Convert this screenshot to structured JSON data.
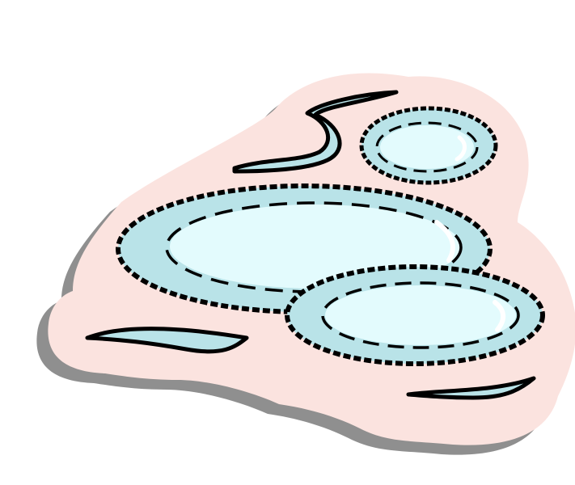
{
  "illustration": {
    "subject": "puddles-sticker-clipart",
    "colors": {
      "background": "#ffffff",
      "shadow": "#8f8f8f",
      "sticker_border": "#fbe3df",
      "water_light": "#e3fbfd",
      "water_mid": "#b9e3e8",
      "highlight": "#ffffff",
      "outline": "#000000"
    }
  }
}
